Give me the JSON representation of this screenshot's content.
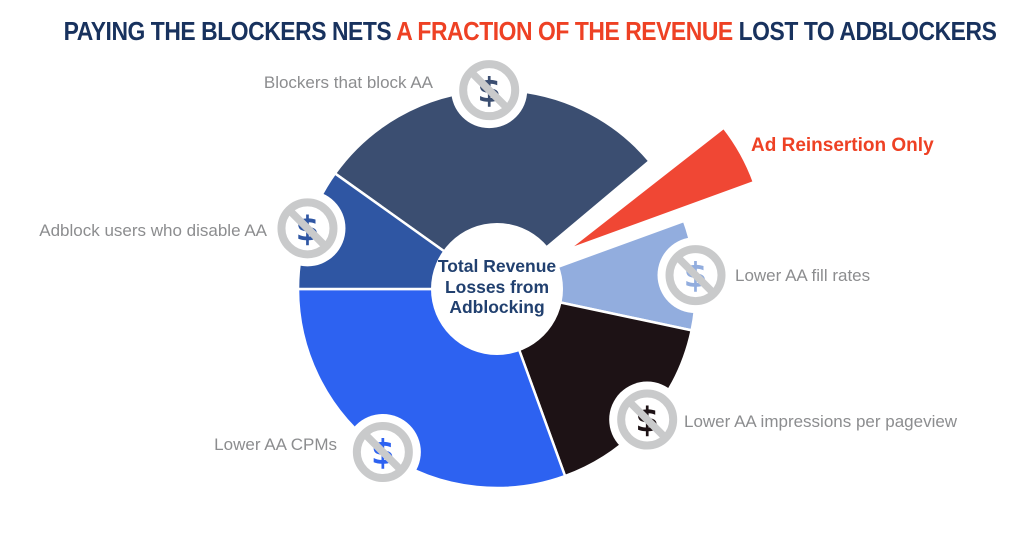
{
  "title": {
    "part1": "PAYING THE BLOCKERS NETS ",
    "highlight": "A FRACTION OF THE REVENUE",
    "part2": " LOST TO ADBLOCKERS"
  },
  "colors": {
    "title_navy": "#18325E",
    "accent_red": "#EE4124",
    "label_gray": "#8C8D8F",
    "icon_ring_gray": "#C9CACB",
    "center_text_navy": "#21406F",
    "background": "#FFFFFF"
  },
  "center_label": {
    "line1": "Total Revenue",
    "line2": "Losses from",
    "line3": "Adblocking"
  },
  "chart_data": {
    "type": "pie",
    "title": "PAYING THE BLOCKERS NETS A FRACTION OF THE REVENUE LOST TO ADBLOCKERS",
    "subtitle": "",
    "center_label": "Total Revenue Losses from Adblocking",
    "legend_position": "none",
    "angle_units": "degrees clockwise from 12 o'clock",
    "slices": [
      {
        "label": "Blockers that block AA",
        "color": "#3B4E71",
        "start_deg": -54.5,
        "end_deg": 50,
        "share_pct_est": 29,
        "exploded": false,
        "icon": "no-dollar"
      },
      {
        "label": "Ad Reinsertion Only",
        "color": "#F04734",
        "start_deg": 52,
        "end_deg": 70,
        "share_pct_est": 5,
        "exploded": true,
        "icon": null
      },
      {
        "label": "Lower AA fill rates",
        "color": "#92ADDE",
        "start_deg": 70,
        "end_deg": 102,
        "share_pct_est": 9,
        "exploded": false,
        "icon": "no-dollar"
      },
      {
        "label": "Lower AA impressions per pageview",
        "color": "#1D1215",
        "start_deg": 102,
        "end_deg": 160,
        "share_pct_est": 16,
        "exploded": false,
        "icon": "no-dollar"
      },
      {
        "label": "Lower AA CPMs",
        "color": "#2D62F1",
        "start_deg": 160,
        "end_deg": 270,
        "share_pct_est": 31,
        "exploded": false,
        "icon": "no-dollar"
      },
      {
        "label": "Adblock users who disable AA",
        "color": "#2F56A3",
        "start_deg": 270,
        "end_deg": 305.5,
        "share_pct_est": 10,
        "exploded": false,
        "icon": "no-dollar"
      }
    ]
  }
}
